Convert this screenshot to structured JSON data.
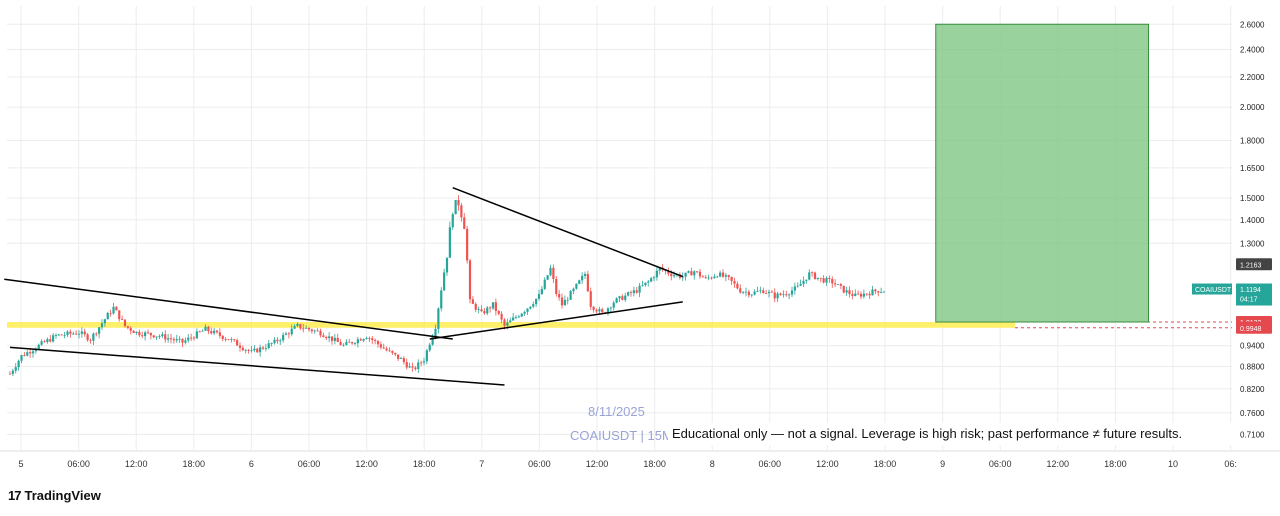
{
  "chart_data": {
    "type": "candlestick",
    "symbol": "COAIUSDT",
    "watermark": "COAIUSDT | 15M",
    "date_stamp": "8/11/2025",
    "y_scale": "log",
    "ylim": [
      0.68,
      2.72
    ],
    "y_ticks": [
      "2.6000",
      "2.4000",
      "2.2000",
      "2.0000",
      "1.8000",
      "1.6500",
      "1.5000",
      "1.4000",
      "1.3000",
      "1.2163",
      "1.1194",
      "1.0132",
      "0.9948",
      "0.9400",
      "0.8800",
      "0.8200",
      "0.7600",
      "0.7100"
    ],
    "x_ticks": [
      "5",
      "06:00",
      "12:00",
      "18:00",
      "6",
      "06:00",
      "12:00",
      "18:00",
      "7",
      "06:00",
      "12:00",
      "18:00",
      "8",
      "06:00",
      "12:00",
      "18:00",
      "9",
      "06:00",
      "12:00",
      "18:00",
      "10",
      "06:"
    ],
    "price_path": [
      [
        0,
        0.86
      ],
      [
        2,
        0.91
      ],
      [
        4,
        0.93
      ],
      [
        8,
        0.97
      ],
      [
        12,
        0.98
      ],
      [
        14,
        0.96
      ],
      [
        18,
        1.06
      ],
      [
        20,
        1.0
      ],
      [
        22,
        0.98
      ],
      [
        26,
        0.97
      ],
      [
        30,
        0.95
      ],
      [
        34,
        0.99
      ],
      [
        38,
        0.96
      ],
      [
        42,
        0.92
      ],
      [
        46,
        0.95
      ],
      [
        50,
        1.0
      ],
      [
        54,
        0.98
      ],
      [
        58,
        0.94
      ],
      [
        62,
        0.97
      ],
      [
        66,
        0.92
      ],
      [
        68,
        0.9
      ],
      [
        70,
        0.87
      ],
      [
        72,
        0.9
      ],
      [
        74,
        1.0
      ],
      [
        76,
        1.25
      ],
      [
        77,
        1.45
      ],
      [
        78,
        1.48
      ],
      [
        79,
        1.38
      ],
      [
        80,
        1.08
      ],
      [
        82,
        1.04
      ],
      [
        84,
        1.07
      ],
      [
        86,
        1.0
      ],
      [
        88,
        1.03
      ],
      [
        90,
        1.06
      ],
      [
        92,
        1.1
      ],
      [
        94,
        1.2
      ],
      [
        95,
        1.11
      ],
      [
        96,
        1.07
      ],
      [
        98,
        1.12
      ],
      [
        100,
        1.18
      ],
      [
        101,
        1.07
      ],
      [
        103,
        1.04
      ],
      [
        105,
        1.08
      ],
      [
        107,
        1.1
      ],
      [
        109,
        1.12
      ],
      [
        111,
        1.15
      ],
      [
        113,
        1.2
      ],
      [
        115,
        1.18
      ],
      [
        117,
        1.17
      ],
      [
        119,
        1.19
      ],
      [
        121,
        1.16
      ],
      [
        123,
        1.18
      ],
      [
        125,
        1.16
      ],
      [
        127,
        1.12
      ],
      [
        129,
        1.11
      ],
      [
        131,
        1.12
      ],
      [
        133,
        1.1
      ],
      [
        135,
        1.11
      ],
      [
        137,
        1.13
      ],
      [
        139,
        1.18
      ],
      [
        141,
        1.16
      ],
      [
        143,
        1.15
      ],
      [
        145,
        1.12
      ],
      [
        147,
        1.1
      ],
      [
        149,
        1.11
      ],
      [
        151,
        1.12
      ],
      [
        152,
        1.119
      ]
    ],
    "last_price": "1.1194",
    "last_price_countdown": "04:17",
    "level_high": "1.2163",
    "zone_upper": "1.0132",
    "zone_lower": "0.9948",
    "support_zone": {
      "low": 0.9948,
      "high": 1.0132
    },
    "target_box": {
      "low": 1.0132,
      "high": 2.6,
      "start_candle": 161,
      "end_candle": 198
    },
    "trendlines": [
      {
        "name": "upper wedge line",
        "from": [
          -1,
          1.16
        ],
        "to": [
          77,
          0.96
        ]
      },
      {
        "name": "lower wedge line",
        "from": [
          0,
          0.935
        ],
        "to": [
          86,
          0.83
        ]
      },
      {
        "name": "triangle upper",
        "from": [
          77,
          1.55
        ],
        "to": [
          117,
          1.17
        ]
      },
      {
        "name": "triangle lower",
        "from": [
          73,
          0.96
        ],
        "to": [
          117,
          1.08
        ]
      }
    ],
    "colors": {
      "up": "#26a69a",
      "down": "#ef5350",
      "zone": "#ffeb3b",
      "target": "#81c784",
      "target_border": "#388e3c",
      "grid": "#ececec",
      "trendline": "#000000",
      "badge_red": "#e5484d",
      "badge_green": "#26a69a",
      "badge_dark": "#444444"
    }
  },
  "disclaimer": "Educational only — not a signal. Leverage is high risk; past performance ≠ future results.",
  "branding": {
    "logo": "17",
    "name": "TradingView"
  }
}
